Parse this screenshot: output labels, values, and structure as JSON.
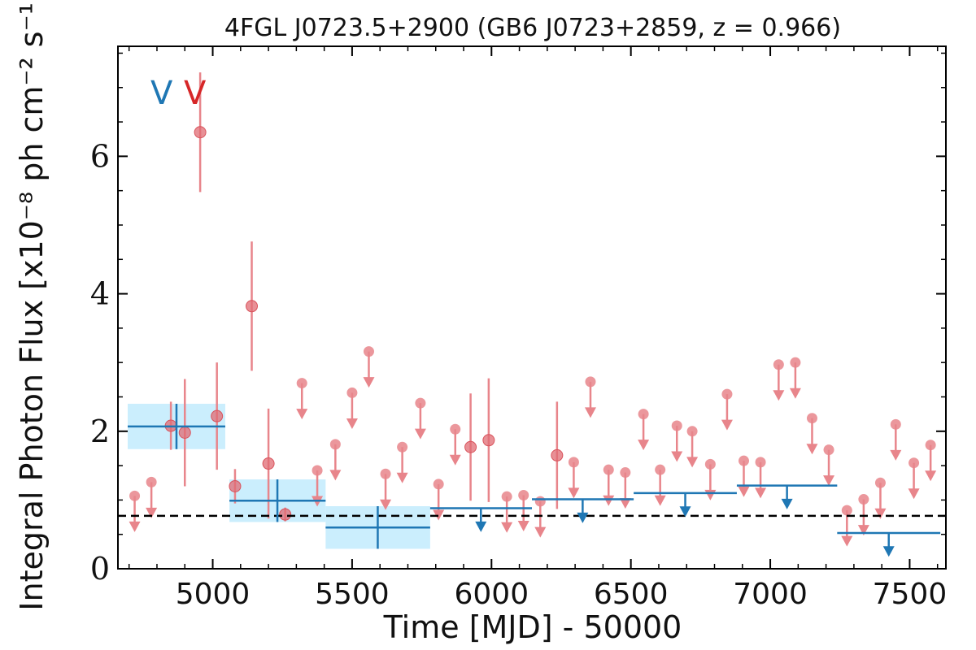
{
  "chart_data": {
    "type": "scatter",
    "title": "4FGL J0723.5+2900 (GB6 J0723+2859, z = 0.966)",
    "xlabel": "Time [MJD] - 50000",
    "ylabel": "Integral Photon Flux [x10⁻⁸ ph cm⁻² s⁻¹]",
    "xlim": [
      4660,
      7630
    ],
    "ylim": [
      0,
      7.6
    ],
    "x_ticks": [
      5000,
      5500,
      6000,
      6500,
      7000,
      7500
    ],
    "y_ticks": [
      0,
      2,
      4,
      6
    ],
    "grid": false,
    "reference_line": {
      "y": 0.77,
      "style": "dashed",
      "color": "#000000"
    },
    "markers": [
      {
        "label": "V",
        "color": "#1f77b4"
      },
      {
        "label": "V",
        "color": "#d62728"
      }
    ],
    "series": [
      {
        "color": "#e8858b",
        "detections": [
          {
            "x": 4850,
            "y": 2.08,
            "yerr": 0.35
          },
          {
            "x": 4900,
            "y": 1.98,
            "yerr": 0.78
          },
          {
            "x": 4955,
            "y": 6.35,
            "yerr": 0.87
          },
          {
            "x": 5015,
            "y": 2.22,
            "yerr": 0.78
          },
          {
            "x": 5080,
            "y": 1.2,
            "yerr": 0.25
          },
          {
            "x": 5140,
            "y": 3.82,
            "yerr": 0.94
          },
          {
            "x": 5200,
            "y": 1.53,
            "yerr": 0.8
          },
          {
            "x": 5260,
            "y": 0.79,
            "yerr": 0.1
          },
          {
            "x": 5925,
            "y": 1.77,
            "yerr": 0.78
          },
          {
            "x": 5990,
            "y": 1.87,
            "yerr": 0.9
          },
          {
            "x": 6235,
            "y": 1.65,
            "yerr": 0.78
          }
        ],
        "upper_limits": [
          {
            "x": 4720,
            "y": 1.06
          },
          {
            "x": 4780,
            "y": 1.26
          },
          {
            "x": 5375,
            "y": 1.43
          },
          {
            "x": 5320,
            "y": 2.7
          },
          {
            "x": 5440,
            "y": 1.81
          },
          {
            "x": 5500,
            "y": 2.56
          },
          {
            "x": 5560,
            "y": 3.16
          },
          {
            "x": 5620,
            "y": 1.38
          },
          {
            "x": 5680,
            "y": 1.77
          },
          {
            "x": 5745,
            "y": 2.41
          },
          {
            "x": 5810,
            "y": 1.23
          },
          {
            "x": 5870,
            "y": 2.03
          },
          {
            "x": 6055,
            "y": 1.05
          },
          {
            "x": 6115,
            "y": 1.07
          },
          {
            "x": 6175,
            "y": 0.98
          },
          {
            "x": 6295,
            "y": 1.55
          },
          {
            "x": 6355,
            "y": 2.72
          },
          {
            "x": 6420,
            "y": 1.44
          },
          {
            "x": 6480,
            "y": 1.4
          },
          {
            "x": 6545,
            "y": 2.25
          },
          {
            "x": 6605,
            "y": 1.44
          },
          {
            "x": 6665,
            "y": 2.08
          },
          {
            "x": 6720,
            "y": 2.0
          },
          {
            "x": 6785,
            "y": 1.52
          },
          {
            "x": 6845,
            "y": 2.54
          },
          {
            "x": 6905,
            "y": 1.57
          },
          {
            "x": 6965,
            "y": 1.55
          },
          {
            "x": 7030,
            "y": 2.97
          },
          {
            "x": 7090,
            "y": 3.0
          },
          {
            "x": 7150,
            "y": 2.19
          },
          {
            "x": 7210,
            "y": 1.73
          },
          {
            "x": 7275,
            "y": 0.85
          },
          {
            "x": 7335,
            "y": 1.01
          },
          {
            "x": 7395,
            "y": 1.25
          },
          {
            "x": 7450,
            "y": 2.1
          },
          {
            "x": 7515,
            "y": 1.54
          },
          {
            "x": 7575,
            "y": 1.8
          }
        ]
      },
      {
        "color": "#1f77b4",
        "detections": [
          {
            "x0": 4695,
            "x1": 5045,
            "y": 2.07,
            "yerr": 0.33,
            "xmid": 4870
          },
          {
            "x0": 5060,
            "x1": 5405,
            "y": 0.99,
            "yerr": 0.31,
            "xmid": 5232
          },
          {
            "x0": 5405,
            "x1": 5780,
            "y": 0.6,
            "yerr": 0.31,
            "xmid": 5592
          }
        ],
        "upper_limits": [
          {
            "x0": 5780,
            "x1": 6145,
            "y": 0.88,
            "xmid": 5962
          },
          {
            "x0": 6145,
            "x1": 6510,
            "y": 1.01,
            "xmid": 6327
          },
          {
            "x0": 6510,
            "x1": 6880,
            "y": 1.1,
            "xmid": 6695
          },
          {
            "x0": 6880,
            "x1": 7240,
            "y": 1.21,
            "xmid": 7060
          },
          {
            "x0": 7240,
            "x1": 7610,
            "y": 0.52,
            "xmid": 7425
          }
        ]
      }
    ]
  }
}
